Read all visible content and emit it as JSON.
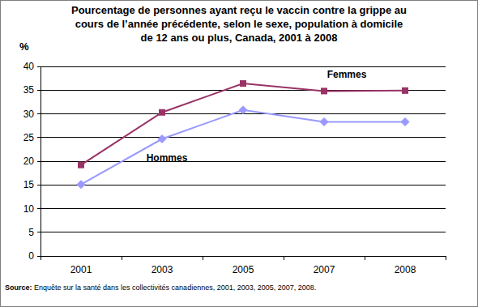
{
  "chart_data": {
    "type": "line",
    "title": "Pourcentage de personnes ayant reçu le vaccin contre la grippe au cours de l’année précédente, selon le sexe, population à domicile de 12 ans ou plus, Canada, 2001 à 2008",
    "y_label": "%",
    "categories": [
      "2001",
      "2003",
      "2005",
      "2007",
      "2008"
    ],
    "series": [
      {
        "name": "Femmes",
        "color": "#993366",
        "marker": "square",
        "line_style": "solid",
        "values": [
          19.2,
          30.3,
          36.4,
          34.8,
          34.9
        ]
      },
      {
        "name": "Hommes",
        "color": "#9999ff",
        "marker": "diamond",
        "line_style": "solid",
        "values": [
          15.1,
          24.7,
          30.8,
          28.3,
          28.3
        ]
      }
    ],
    "ylim": [
      0,
      40
    ],
    "yticks": [
      0,
      5,
      10,
      15,
      20,
      25,
      30,
      35,
      40
    ],
    "grid": true,
    "source": {
      "label": "Source:",
      "text": "Enquête sur la santé dans les collectivités canadiennes, 2001, 2003, 2005, 2007, 2008."
    }
  }
}
